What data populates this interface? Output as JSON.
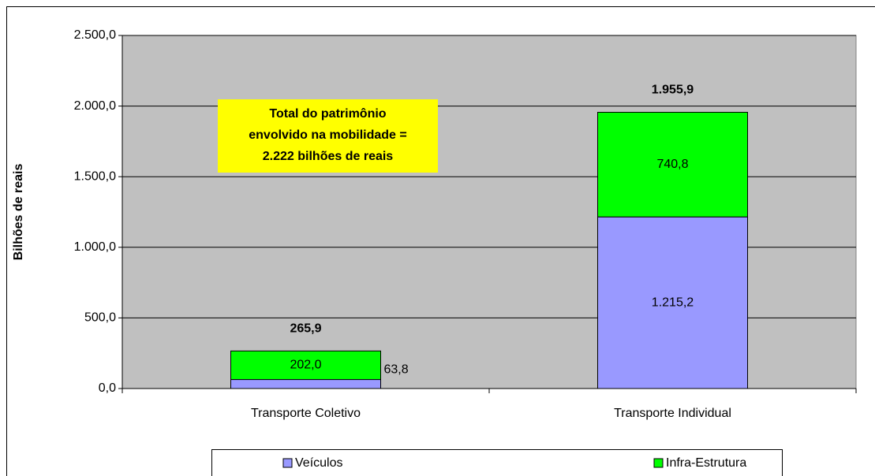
{
  "chart_data": {
    "type": "stacked_bar",
    "y_label": "Bilhões de reais",
    "categories": [
      "Transporte Coletivo",
      "Transporte Individual"
    ],
    "series": [
      {
        "name": "Veículos",
        "color": "#9999ff",
        "values": [
          63.8,
          1215.2
        ],
        "value_labels": [
          "63,8",
          "1.215,2"
        ]
      },
      {
        "name": "Infra-Estrutura",
        "color": "#00ff00",
        "values": [
          202.0,
          740.8
        ],
        "value_labels": [
          "202,0",
          "740,8"
        ]
      }
    ],
    "totals": {
      "values": [
        265.9,
        1955.9
      ],
      "value_labels": [
        "265,9",
        "1.955,9"
      ]
    },
    "annotation": [
      "Total do patrimônio",
      "envolvido na mobilidade =",
      "2.222 bilhões de reais"
    ],
    "ylim": [
      0,
      2500
    ],
    "yticks": [
      {
        "value": 0,
        "label": "0,0"
      },
      {
        "value": 500,
        "label": "500,0"
      },
      {
        "value": 1000,
        "label": "1.000,0"
      },
      {
        "value": 1500,
        "label": "1.500,0"
      },
      {
        "value": 2000,
        "label": "2.000,0"
      },
      {
        "value": 2500,
        "label": "2.500,0"
      }
    ],
    "grid": true,
    "plot_background": "#c0c0c0",
    "legend": "bottom"
  }
}
